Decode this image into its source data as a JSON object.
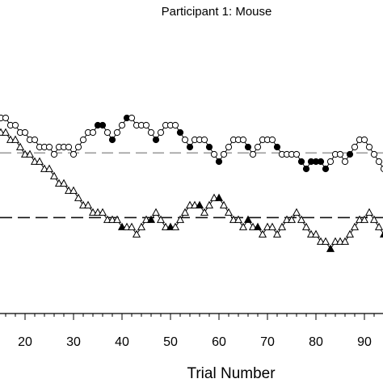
{
  "chart_data": {
    "type": "line",
    "title": "Participant 1: Mouse",
    "xlabel": "Trial Number",
    "xlim": [
      14,
      97
    ],
    "ylim": [
      0,
      30
    ],
    "xticks": [
      20,
      30,
      40,
      50,
      60,
      70,
      80,
      90
    ],
    "grid": false,
    "reference_lines": [
      {
        "y": 21.2,
        "style": "dashed",
        "weight": "light"
      },
      {
        "y": 12.3,
        "style": "dashed",
        "weight": "heavy"
      }
    ],
    "series": [
      {
        "marker": "circle",
        "x": [
          14,
          15,
          16,
          17,
          18,
          19,
          20,
          21,
          22,
          23,
          24,
          25,
          26,
          27,
          28,
          29,
          30,
          31,
          32,
          33,
          34,
          35,
          36,
          37,
          38,
          39,
          40,
          41,
          42,
          43,
          44,
          45,
          46,
          47,
          48,
          49,
          50,
          51,
          52,
          53,
          54,
          55,
          56,
          57,
          58,
          59,
          60,
          61,
          62,
          63,
          64,
          65,
          66,
          67,
          68,
          69,
          70,
          71,
          72,
          73,
          74,
          75,
          76,
          77,
          78,
          79,
          80,
          81,
          82,
          83,
          84,
          85,
          86,
          87,
          88,
          89,
          90,
          91,
          92,
          93,
          94,
          95,
          96
        ],
        "y": [
          26,
          26,
          26,
          25,
          25,
          24,
          24,
          23,
          23,
          22,
          22,
          22,
          21,
          22,
          22,
          22,
          21,
          22,
          23,
          24,
          24,
          25,
          25,
          24,
          23,
          24,
          25,
          26,
          26,
          25,
          25,
          25,
          24,
          23,
          24,
          25,
          25,
          25,
          24,
          23,
          22,
          23,
          23,
          23,
          22,
          21,
          20,
          21,
          22,
          23,
          23,
          23,
          22,
          21,
          22,
          23,
          23,
          23,
          22,
          21,
          21,
          21,
          21,
          20,
          19,
          20,
          20,
          20,
          19,
          20,
          21,
          21,
          20,
          21,
          22,
          23,
          23,
          22,
          21,
          20,
          19,
          19,
          19
        ],
        "filled": [
          0,
          0,
          0,
          0,
          0,
          0,
          0,
          0,
          0,
          0,
          0,
          0,
          0,
          0,
          0,
          0,
          0,
          0,
          0,
          0,
          0,
          1,
          1,
          0,
          1,
          0,
          0,
          1,
          0,
          0,
          0,
          0,
          0,
          1,
          0,
          0,
          0,
          0,
          1,
          0,
          1,
          0,
          0,
          0,
          1,
          0,
          1,
          0,
          0,
          0,
          0,
          0,
          1,
          0,
          0,
          0,
          0,
          0,
          1,
          0,
          0,
          0,
          0,
          1,
          1,
          1,
          1,
          1,
          1,
          0,
          0,
          0,
          0,
          1,
          0,
          0,
          0,
          0,
          0,
          0,
          0,
          1,
          0
        ]
      },
      {
        "marker": "triangle",
        "x": [
          14,
          15,
          16,
          17,
          18,
          19,
          20,
          21,
          22,
          23,
          24,
          25,
          26,
          27,
          28,
          29,
          30,
          31,
          32,
          33,
          34,
          35,
          36,
          37,
          38,
          39,
          40,
          41,
          42,
          43,
          44,
          45,
          46,
          47,
          48,
          49,
          50,
          51,
          52,
          53,
          54,
          55,
          56,
          57,
          58,
          59,
          60,
          61,
          62,
          63,
          64,
          65,
          66,
          67,
          68,
          69,
          70,
          71,
          72,
          73,
          74,
          75,
          76,
          77,
          78,
          79,
          80,
          81,
          82,
          83,
          84,
          85,
          86,
          87,
          88,
          89,
          90,
          91,
          92,
          93,
          94,
          95,
          96
        ],
        "y": [
          24,
          24,
          24,
          23,
          23,
          22,
          21,
          21,
          20,
          20,
          19,
          19,
          18,
          17,
          17,
          16,
          16,
          15,
          14,
          14,
          13,
          13,
          13,
          12,
          12,
          12,
          11,
          11,
          11,
          10,
          11,
          12,
          12,
          13,
          12,
          11,
          11,
          11,
          12,
          13,
          14,
          14,
          14,
          13,
          14,
          15,
          15,
          14,
          13,
          12,
          12,
          11,
          12,
          11,
          11,
          10,
          11,
          11,
          10,
          11,
          12,
          12,
          13,
          12,
          11,
          10,
          10,
          9,
          9,
          8,
          9,
          9,
          9,
          10,
          11,
          12,
          12,
          13,
          12,
          11,
          10,
          10,
          12
        ],
        "filled": [
          0,
          0,
          0,
          0,
          0,
          0,
          0,
          0,
          0,
          0,
          0,
          0,
          0,
          0,
          0,
          0,
          0,
          0,
          0,
          0,
          0,
          0,
          0,
          0,
          0,
          0,
          1,
          0,
          0,
          0,
          0,
          0,
          1,
          0,
          0,
          0,
          1,
          0,
          0,
          0,
          0,
          0,
          1,
          0,
          0,
          0,
          1,
          0,
          0,
          0,
          0,
          0,
          1,
          0,
          1,
          0,
          0,
          0,
          0,
          0,
          0,
          0,
          0,
          0,
          0,
          0,
          0,
          0,
          0,
          1,
          0,
          0,
          0,
          0,
          0,
          0,
          0,
          0,
          0,
          0,
          1,
          0,
          0
        ]
      }
    ]
  }
}
